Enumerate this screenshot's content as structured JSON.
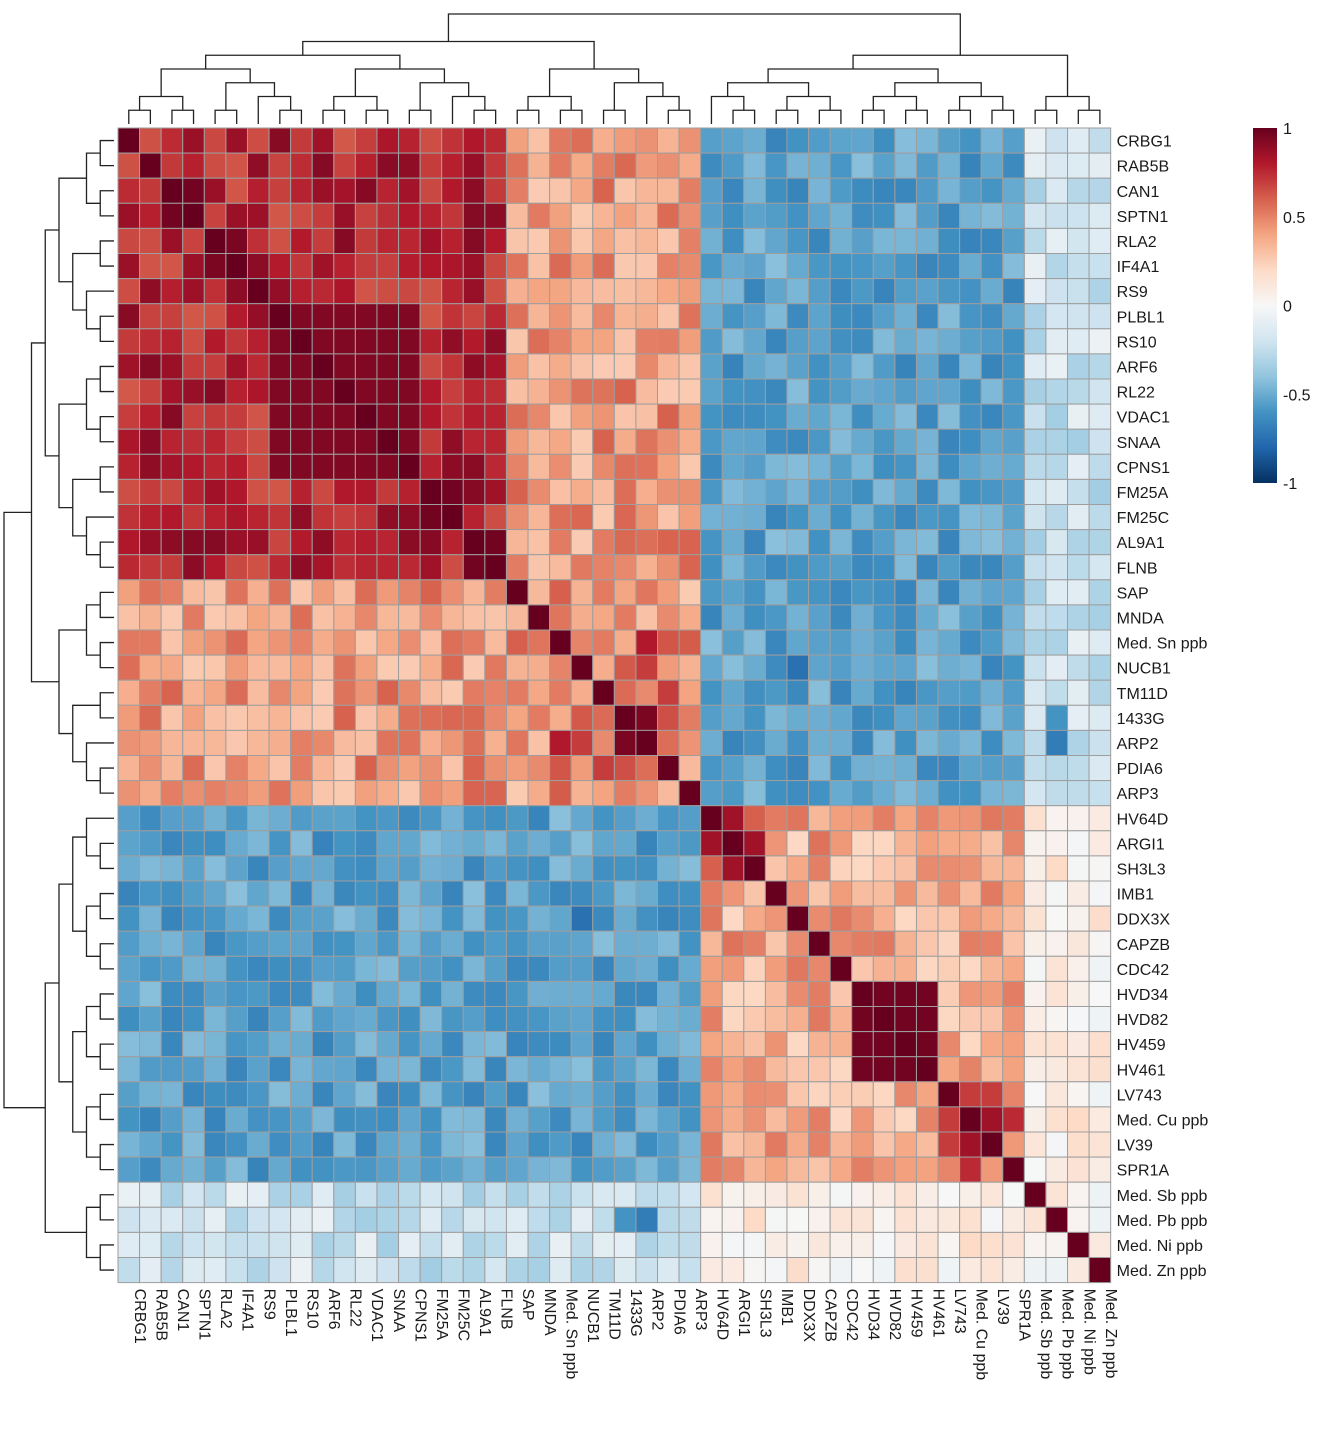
{
  "chart_data": {
    "type": "heatmap",
    "labels": [
      "CRBG1",
      "RAB5B",
      "CAN1",
      "SPTN1",
      "RLA2",
      "IF4A1",
      "RS9",
      "PLBL1",
      "RS10",
      "ARF6",
      "RL22",
      "VDAC1",
      "SNAA",
      "CPNS1",
      "FM25A",
      "FM25C",
      "AL9A1",
      "FLNB",
      "SAP",
      "MNDA",
      "Med. Sn ppb",
      "NUCB1",
      "TM11D",
      "1433G",
      "ARP2",
      "PDIA6",
      "ARP3",
      "HV64D",
      "ARGI1",
      "SH3L3",
      "IMB1",
      "DDX3X",
      "CAPZB",
      "CDC42",
      "HVD34",
      "HVD82",
      "HV459",
      "HV461",
      "LV743",
      "Med. Cu ppb",
      "LV39",
      "SPR1A",
      "Med. Sb ppb",
      "Med. Pb ppb",
      "Med. Ni ppb",
      "Med. Zn ppb"
    ],
    "values_note": "",
    "colorbar": {
      "ticks": [
        "1",
        "0.5",
        "0",
        "-0.5",
        "-1"
      ],
      "range": [
        -1,
        1
      ],
      "colors": [
        "#053061",
        "#2166ac",
        "#4393c3",
        "#92c5de",
        "#d1e5f0",
        "#f7f7f7",
        "#fddbc7",
        "#f4a582",
        "#d6604d",
        "#b2182b",
        "#67001f"
      ]
    },
    "row_dendrogram": true,
    "col_dendrogram": true,
    "grid_color": "#9e9e9e",
    "title": ""
  }
}
